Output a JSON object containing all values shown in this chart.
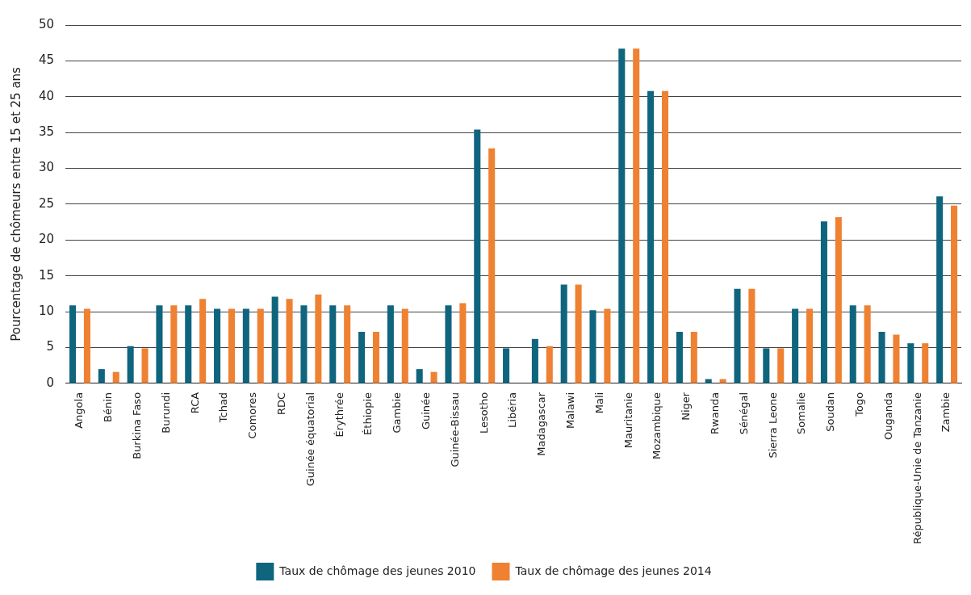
{
  "chart_data": {
    "type": "bar",
    "ylabel": "Pourcentage de chômeurs entre 15 et 25 ans",
    "categories": [
      "Angola",
      "Bénin",
      "Burkina Faso",
      "Burundi",
      "RCA",
      "Tchad",
      "Comores",
      "RDC",
      "Guinée équatorial",
      "Érythrée",
      "Éthiopie",
      "Gambie",
      "Guinée",
      "Guinée-Bissau",
      "Lesotho",
      "Libéria",
      "Madagascar",
      "Malawi",
      "Mali",
      "Mauritanie",
      "Mozambique",
      "Niger",
      "Rwanda",
      "Sénégal",
      "Sierra Leone",
      "Somalie",
      "Soudan",
      "Togo",
      "Ouganda",
      "République-Unie de Tanzanie",
      "Zambie"
    ],
    "series": [
      {
        "name": "Taux de chômage des jeunes 2010",
        "color": "#0f657d",
        "values": [
          10.9,
          2.0,
          5.2,
          10.9,
          10.9,
          10.4,
          10.4,
          12.1,
          10.9,
          10.9,
          7.2,
          10.9,
          2.0,
          10.9,
          35.4,
          4.9,
          6.2,
          13.8,
          10.2,
          46.7,
          40.8,
          7.2,
          0.6,
          13.2,
          4.9,
          10.4,
          22.6,
          10.9,
          7.2,
          5.6,
          26.1
        ]
      },
      {
        "name": "Taux de chômage des jeunes 2014",
        "color": "#ef8132",
        "values": [
          10.4,
          1.6,
          4.9,
          10.9,
          11.8,
          10.4,
          10.4,
          11.8,
          12.4,
          10.9,
          7.2,
          10.4,
          1.6,
          11.2,
          32.8,
          null,
          5.2,
          13.8,
          10.4,
          46.7,
          40.8,
          7.2,
          0.6,
          13.2,
          4.9,
          10.4,
          23.2,
          10.9,
          6.8,
          5.6,
          24.8
        ]
      }
    ],
    "ylim": [
      0,
      50
    ],
    "yticks": [
      0,
      5,
      10,
      15,
      20,
      25,
      30,
      35,
      40,
      45,
      50
    ],
    "grid": "y",
    "legend": "bottom"
  }
}
